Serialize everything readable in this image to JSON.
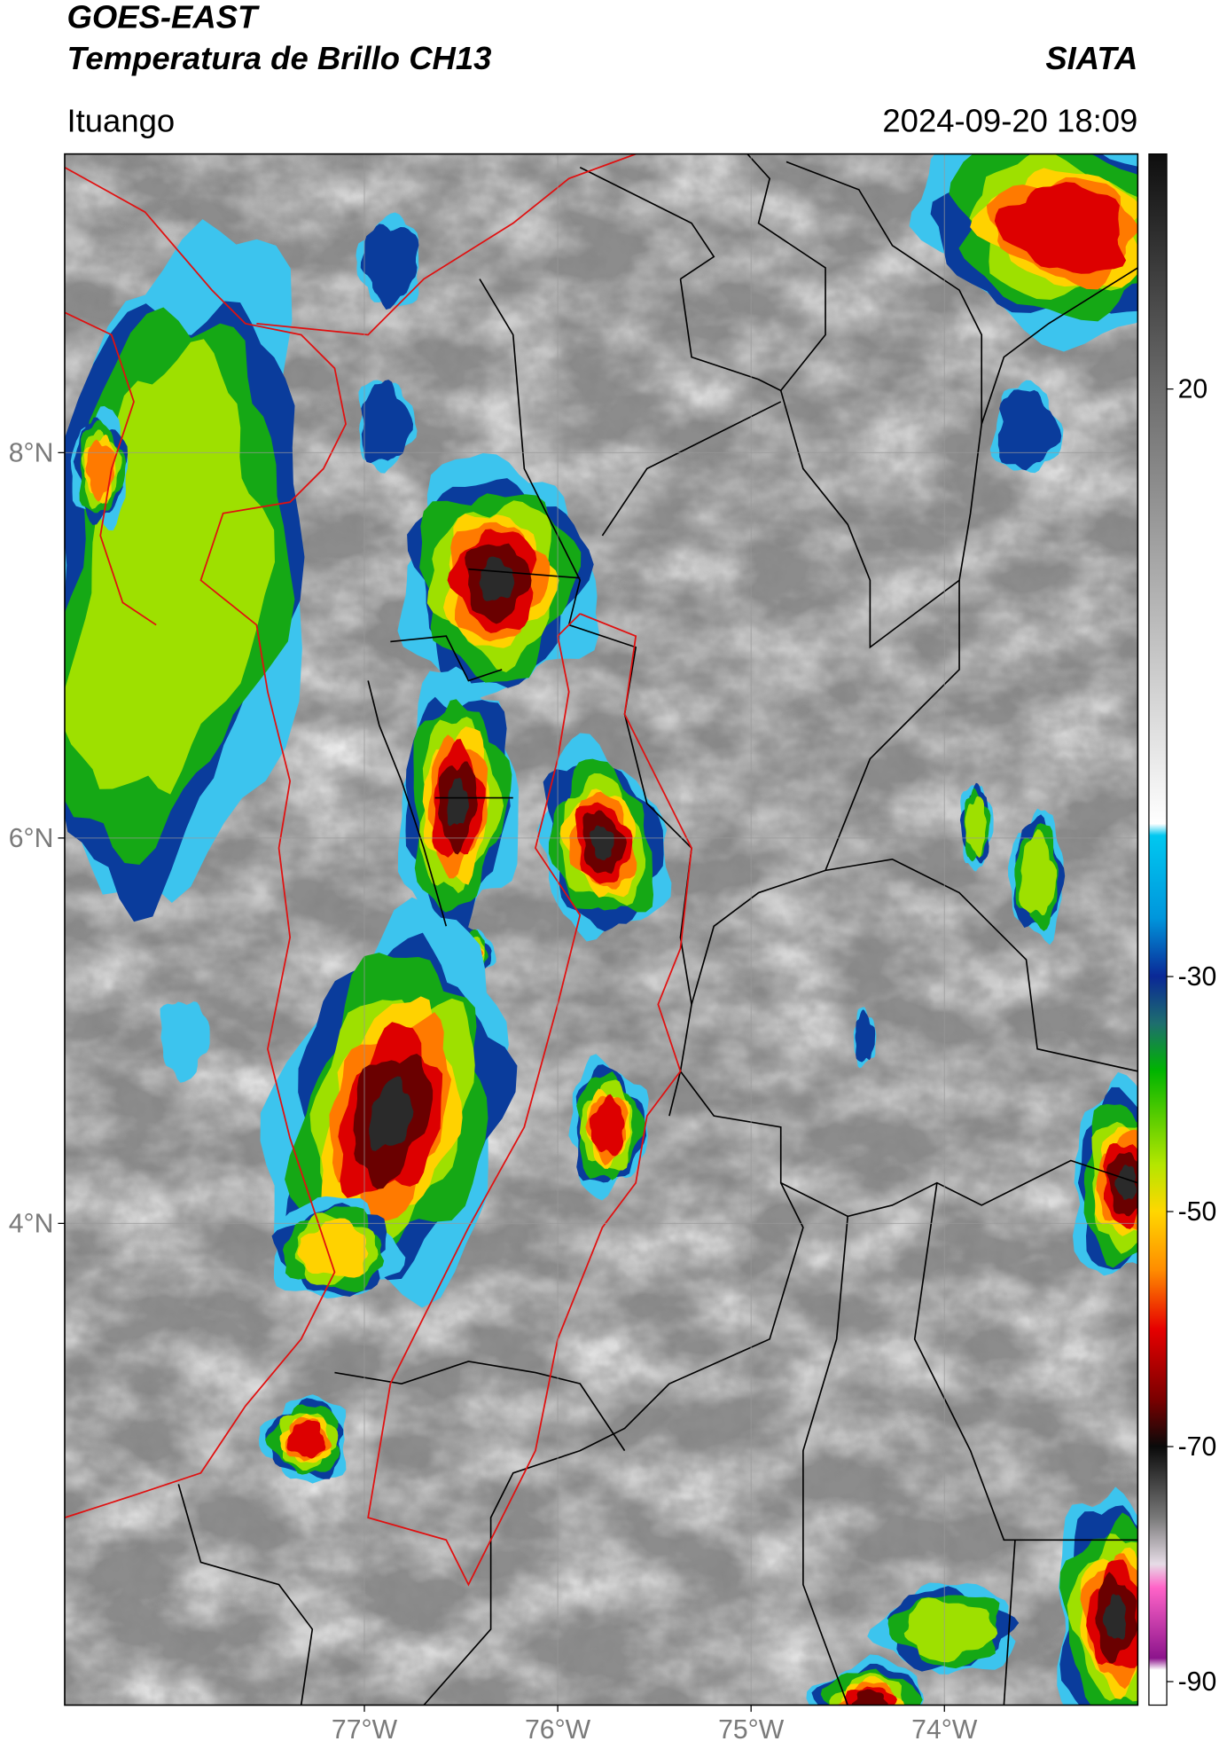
{
  "header": {
    "title": "GOES-EAST",
    "subtitle": "Temperatura de Brillo CH13",
    "agency": "SIATA",
    "location": "Ituango",
    "datetime": "2024-09-20 18:09"
  },
  "map": {
    "xlim": [
      -78.55,
      -73
    ],
    "ylim": [
      1.5,
      9.55
    ],
    "xticks": [
      {
        "value": -77,
        "label": "77°W"
      },
      {
        "value": -76,
        "label": "76°W"
      },
      {
        "value": -75,
        "label": "75°W"
      },
      {
        "value": -74,
        "label": "74°W"
      }
    ],
    "yticks": [
      {
        "value": 8,
        "label": "8°N"
      },
      {
        "value": 6,
        "label": "6°N"
      },
      {
        "value": 4,
        "label": "4°N"
      }
    ],
    "grid": true,
    "colorbar": {
      "lim": [
        -92,
        40
      ],
      "ticks": [
        20,
        -30,
        -50,
        -70,
        -90
      ],
      "colorscale": [
        [
          40,
          "#0e0e0e"
        ],
        [
          20,
          "#6c6c6c"
        ],
        [
          -17,
          "#ffffff"
        ],
        [
          -18,
          "#00c8f0"
        ],
        [
          -25,
          "#0096dc"
        ],
        [
          -30,
          "#0a2896"
        ],
        [
          -34,
          "#1e6e6e"
        ],
        [
          -38,
          "#00b400"
        ],
        [
          -46,
          "#b4e600"
        ],
        [
          -50,
          "#ffd700"
        ],
        [
          -55,
          "#ff8c00"
        ],
        [
          -60,
          "#e60000"
        ],
        [
          -66,
          "#7a0000"
        ],
        [
          -70,
          "#0a0a0a"
        ],
        [
          -76,
          "#787878"
        ],
        [
          -80,
          "#e6dce6"
        ],
        [
          -82,
          "#ff64c8"
        ],
        [
          -88,
          "#8c148c"
        ],
        [
          -89,
          "#ffffff"
        ],
        [
          -92,
          "#ffffff"
        ]
      ]
    }
  }
}
